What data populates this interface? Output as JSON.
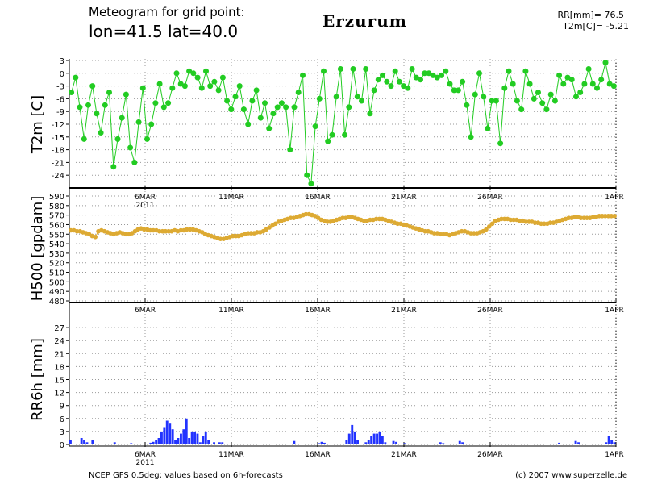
{
  "header": {
    "line1": "Meteogram for grid point:",
    "line2": "lon=41.5 lat=40.0",
    "city": "Erzurum",
    "stat1": "RR[mm]= 76.5",
    "stat2": "T2m[C]= -5.21"
  },
  "footer": {
    "left": "NCEP GFS 0.5deg; values based on 6h-forecasts",
    "right": "(c) 2007 www.superzelle.de"
  },
  "colors": {
    "t2m": "#22cc22",
    "h500": "#ddaa33",
    "rr": "#2233ff",
    "grid": "#999999"
  },
  "chart_data": [
    {
      "type": "line",
      "ylabel": "T2m [C]",
      "ylim": [
        -27,
        3
      ],
      "yticks": [
        "3",
        "0",
        "-3",
        "-6",
        "-9",
        "-12",
        "-15",
        "-18",
        "-21",
        "-24"
      ],
      "xlabels": [
        "6MAR",
        "11MAR",
        "16MAR",
        "21MAR",
        "26MAR",
        "1APR"
      ],
      "year_label": "2011",
      "series": [
        {
          "values": [
            -4.5,
            -1,
            -8,
            -15.5,
            -7.5,
            -3,
            -9.5,
            -14,
            -7.5,
            -4.5,
            -22,
            -15.5,
            -10.5,
            -5,
            -17.5,
            -21,
            -11.5,
            -3.5,
            -15.5,
            -12,
            -7,
            -2.5,
            -8,
            -7,
            -3.5,
            0,
            -2.5,
            -3,
            0.5,
            0,
            -1,
            -3.5,
            0.5,
            -3,
            -2,
            -4,
            -1,
            -6.5,
            -8.5,
            -5.5,
            -3,
            -8.5,
            -12,
            -6.5,
            -4,
            -10.5,
            -7,
            -13,
            -9.5,
            -8,
            -7,
            -8,
            -18,
            -8,
            -4.5,
            -0.5,
            -24,
            -26,
            -12.5,
            -6,
            0.5,
            -16,
            -14.5,
            -5.5,
            1,
            -14.5,
            -8,
            1,
            -5.5,
            -6.5,
            1,
            -9.5,
            -4,
            -1.5,
            -0.5,
            -2,
            -3,
            0.5,
            -2,
            -3,
            -3.5,
            1,
            -1,
            -1.5,
            0,
            0,
            -0.5,
            -1,
            -0.5,
            0.5,
            -2.5,
            -4,
            -4,
            -2,
            -7.5,
            -15,
            -5,
            0,
            -5.5,
            -13,
            -6.5,
            -6.5,
            -16.5,
            -3.5,
            0.5,
            -2.5,
            -6.5,
            -8.5,
            0.5,
            -2.5,
            -6,
            -4.5,
            -7,
            -8.5,
            -5,
            -6.5,
            -0.5,
            -2.5,
            -1,
            -1.5,
            -5.5,
            -4.5,
            -2.5,
            1,
            -2.5,
            -3.5,
            -1.5,
            2.5,
            -2.5,
            -3
          ]
        }
      ]
    },
    {
      "type": "line",
      "ylabel": "H500 [gpdam]",
      "ylim": [
        480,
        590
      ],
      "yticks": [
        "590",
        "580",
        "570",
        "560",
        "550",
        "540",
        "530",
        "520",
        "510",
        "500",
        "490",
        "480"
      ],
      "xlabels": [
        "6MAR",
        "11MAR",
        "16MAR",
        "21MAR",
        "26MAR",
        "1APR"
      ],
      "series": [
        {
          "values": [
            554,
            554,
            553,
            553,
            552,
            551,
            550,
            548,
            547,
            553,
            554,
            553,
            552,
            551,
            550,
            551,
            552,
            551,
            550,
            550,
            551,
            553,
            555,
            556,
            555,
            555,
            554,
            554,
            554,
            553,
            553,
            553,
            553,
            553,
            554,
            553,
            554,
            554,
            555,
            555,
            555,
            554,
            553,
            552,
            550,
            549,
            548,
            547,
            546,
            545,
            545,
            546,
            547,
            548,
            548,
            548,
            549,
            550,
            551,
            551,
            551,
            552,
            552,
            553,
            555,
            557,
            559,
            561,
            563,
            564,
            565,
            566,
            567,
            567,
            568,
            569,
            570,
            571,
            571,
            570,
            569,
            567,
            565,
            564,
            563,
            563,
            564,
            565,
            566,
            567,
            567,
            568,
            568,
            567,
            566,
            565,
            564,
            564,
            565,
            565,
            566,
            566,
            566,
            565,
            564,
            563,
            562,
            561,
            561,
            560,
            559,
            558,
            557,
            556,
            555,
            554,
            553,
            553,
            552,
            551,
            551,
            550,
            550,
            550,
            549,
            550,
            551,
            552,
            553,
            553,
            552,
            551,
            551,
            551,
            552,
            553,
            555,
            558,
            561,
            564,
            565,
            566,
            566,
            566,
            565,
            565,
            565,
            564,
            564,
            563,
            563,
            563,
            562,
            562,
            561,
            561,
            561,
            562,
            562,
            563,
            564,
            565,
            566,
            567,
            567,
            568,
            568,
            567,
            567,
            567,
            567,
            568,
            568,
            569,
            569,
            569,
            569,
            569,
            569
          ]
        }
      ]
    },
    {
      "type": "bar",
      "ylabel": "RR6h [mm]",
      "ylim": [
        0,
        30
      ],
      "yticks": [
        "27",
        "24",
        "21",
        "18",
        "15",
        "12",
        "9",
        "6",
        "3",
        "0"
      ],
      "xlabels": [
        "6MAR",
        "11MAR",
        "16MAR",
        "21MAR",
        "26MAR",
        "1APR"
      ],
      "year_label": "2011",
      "series": [
        {
          "values": [
            1,
            0,
            0,
            0,
            1.5,
            1,
            0.5,
            0,
            1,
            0,
            0,
            0,
            0,
            0,
            0,
            0,
            0.5,
            0,
            0,
            0,
            0,
            0,
            0.3,
            0,
            0,
            0,
            0,
            0,
            0,
            0.4,
            0.6,
            1,
            1.5,
            3,
            4,
            5.5,
            5,
            3.5,
            1,
            1.5,
            2.5,
            3.5,
            6,
            1.5,
            3,
            3,
            2.5,
            0.5,
            2,
            3,
            1,
            0,
            0.5,
            0,
            0.5,
            0.5,
            0,
            0,
            0,
            0,
            0,
            0,
            0,
            0,
            0,
            0,
            0,
            0,
            0,
            0,
            0,
            0,
            0,
            0,
            0,
            0,
            0,
            0,
            0,
            0,
            0,
            0.8,
            0,
            0,
            0,
            0,
            0,
            0,
            0,
            0,
            0.3,
            0.6,
            0.4,
            0,
            0,
            0,
            0,
            0,
            0,
            0,
            1,
            2.5,
            4.5,
            3,
            1,
            0,
            0,
            0.5,
            1,
            2,
            2.5,
            2.5,
            3,
            2,
            0.5,
            0,
            0,
            0.8,
            0.6,
            0,
            0,
            0.3,
            0,
            0,
            0,
            0,
            0,
            0,
            0,
            0,
            0,
            0,
            0,
            0,
            0.5,
            0.3,
            0,
            0,
            0,
            0,
            0,
            0.8,
            0.5,
            0,
            0,
            0,
            0,
            0,
            0,
            0,
            0,
            0,
            0,
            0,
            0,
            0,
            0,
            0,
            0,
            0,
            0,
            0,
            0,
            0,
            0,
            0,
            0,
            0,
            0,
            0,
            0,
            0,
            0,
            0,
            0,
            0,
            0,
            0.4,
            0,
            0,
            0,
            0,
            0,
            0.8,
            0.5,
            0,
            0,
            0,
            0,
            0,
            0,
            0,
            0,
            0,
            0.5,
            2,
            1,
            0.5
          ]
        }
      ]
    }
  ]
}
